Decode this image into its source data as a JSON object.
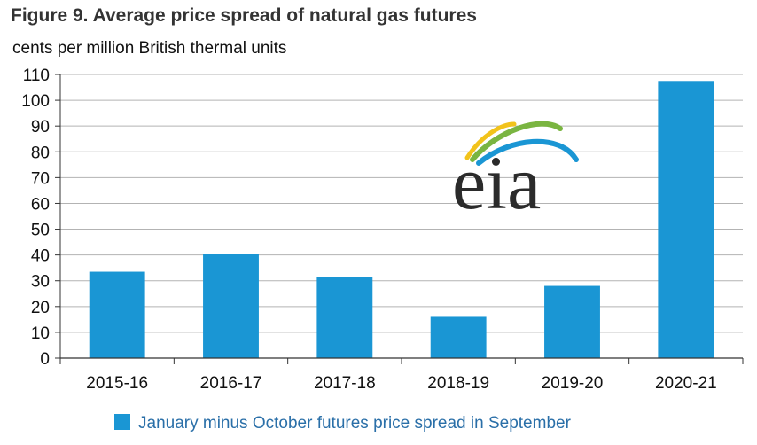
{
  "chart_data": {
    "type": "bar",
    "title": "Figure 9. Average price spread of natural gas futures",
    "subtitle": "cents per million British thermal units",
    "categories": [
      "2015-16",
      "2016-17",
      "2017-18",
      "2018-19",
      "2019-20",
      "2020-21"
    ],
    "series": [
      {
        "name": "January minus October futures price spread in September",
        "values": [
          33.5,
          40.5,
          31.5,
          16,
          28,
          107.5
        ]
      }
    ],
    "ylim": [
      0,
      110
    ],
    "yticks": [
      0,
      10,
      20,
      30,
      40,
      50,
      60,
      70,
      80,
      90,
      100,
      110
    ],
    "grid": true,
    "legend": "bottom",
    "bar_color": "#1a96d4",
    "grid_color": "#b3b3b3",
    "axis_color": "#333333"
  },
  "logo": {
    "text": "eia",
    "colors": [
      "#f2c31b",
      "#7ab541",
      "#1a96d4",
      "#2b2b2b"
    ]
  }
}
